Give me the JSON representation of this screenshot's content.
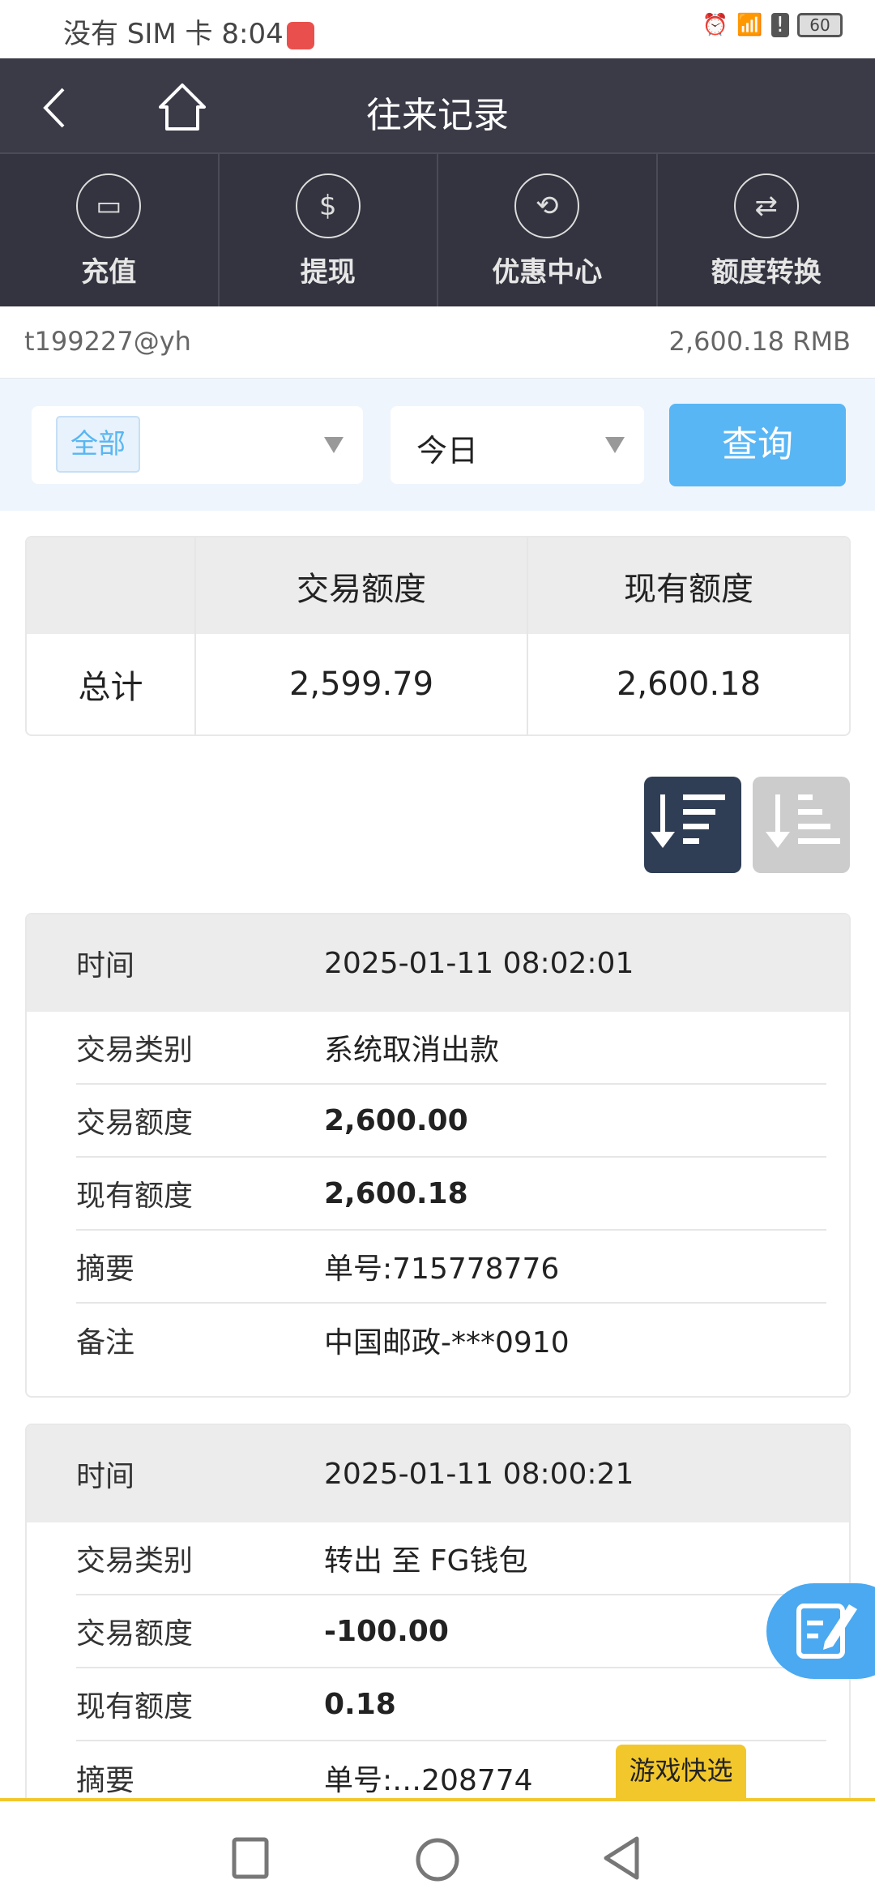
{
  "status_bar": {
    "carrier": "没有 SIM 卡",
    "time": "8:04",
    "battery": "60"
  },
  "header": {
    "title": "往来记录",
    "back_icon": "chevron-left-icon",
    "home_icon": "home-icon"
  },
  "nav": [
    {
      "label": "充值",
      "icon": "deposit-icon"
    },
    {
      "label": "提现",
      "icon": "withdraw-icon"
    },
    {
      "label": "优惠中心",
      "icon": "promo-icon"
    },
    {
      "label": "额度转换",
      "icon": "transfer-icon"
    }
  ],
  "user": {
    "account": "t199227@yh",
    "balance": "2,600.18 RMB"
  },
  "filter": {
    "type_selected": "全部",
    "period_selected": "今日",
    "query_label": "查询"
  },
  "summary": {
    "headers": [
      "",
      "交易额度",
      "现有额度"
    ],
    "row_label": "总计",
    "transaction": "2,599.79",
    "current": "2,600.18"
  },
  "sort": {
    "desc_active": true
  },
  "records": [
    {
      "time_label": "时间",
      "time": "2025-01-11 08:02:01",
      "rows": [
        {
          "label": "交易类别",
          "value": "系统取消出款",
          "bold": false
        },
        {
          "label": "交易额度",
          "value": "2,600.00",
          "bold": true
        },
        {
          "label": "现有额度",
          "value": "2,600.18",
          "bold": true
        },
        {
          "label": "摘要",
          "value": "单号:715778776",
          "bold": false
        },
        {
          "label": "备注",
          "value": "中国邮政-***0910",
          "bold": false
        }
      ]
    },
    {
      "time_label": "时间",
      "time": "2025-01-11 08:00:21",
      "rows": [
        {
          "label": "交易类别",
          "value": "转出 至 FG钱包",
          "bold": false
        },
        {
          "label": "交易额度",
          "value": "-100.00",
          "bold": true
        },
        {
          "label": "现有额度",
          "value": "0.18",
          "bold": true
        },
        {
          "label": "摘要",
          "value": "单号:…208774",
          "bold": false
        }
      ]
    }
  ],
  "floating": {
    "game_quick": "游戏快选"
  },
  "colors": {
    "header": "#3a3b47",
    "accent": "#59b6f5",
    "sort_active": "#2f3e54",
    "game_tag": "#f2c72c"
  }
}
